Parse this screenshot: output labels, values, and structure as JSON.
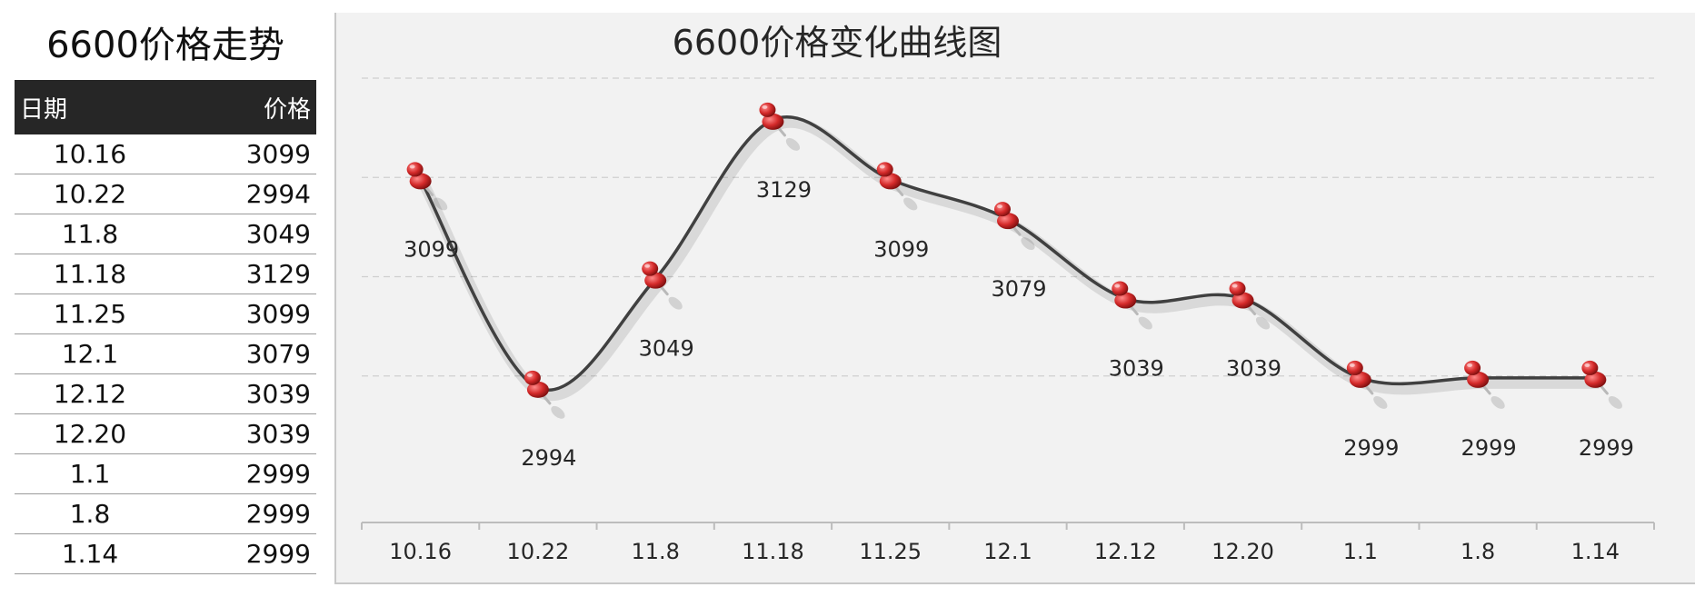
{
  "table": {
    "title": "6600价格走势",
    "headers": {
      "date": "日期",
      "price": "价格"
    },
    "rows": [
      {
        "date": "10.16",
        "price": "3099"
      },
      {
        "date": "10.22",
        "price": "2994"
      },
      {
        "date": "11.8",
        "price": "3049"
      },
      {
        "date": "11.18",
        "price": "3129"
      },
      {
        "date": "11.25",
        "price": "3099"
      },
      {
        "date": "12.1",
        "price": "3079"
      },
      {
        "date": "12.12",
        "price": "3039"
      },
      {
        "date": "12.20",
        "price": "3039"
      },
      {
        "date": "1.1",
        "price": "2999"
      },
      {
        "date": "1.8",
        "price": "2999"
      },
      {
        "date": "1.14",
        "price": "2999"
      }
    ]
  },
  "chart_data": {
    "type": "line",
    "title": "6600价格变化曲线图",
    "xlabel": "",
    "ylabel": "",
    "categories": [
      "10.16",
      "10.22",
      "11.8",
      "11.18",
      "11.25",
      "12.1",
      "12.12",
      "12.20",
      "1.1",
      "1.8",
      "1.14"
    ],
    "series": [
      {
        "values": [
          3099,
          2994,
          3049,
          3129,
          3099,
          3079,
          3039,
          3039,
          2999,
          2999,
          2999
        ]
      }
    ],
    "ylim": [
      2950,
      3150
    ],
    "grid": true,
    "data_labels": true,
    "smooth": true,
    "marker": "red-pushpin-icon",
    "colors": {
      "line": "#404040",
      "marker": "#d42a2a",
      "background": "#f2f2f2"
    }
  }
}
